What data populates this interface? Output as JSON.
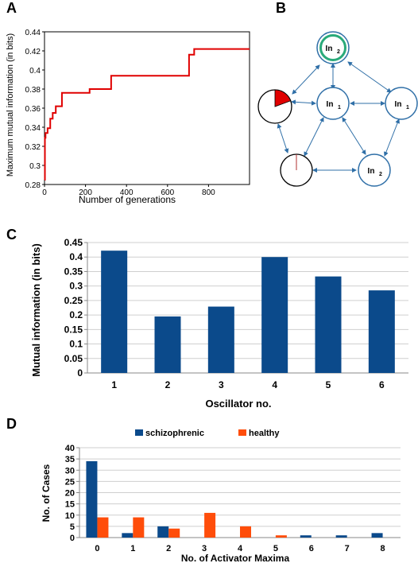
{
  "panels": {
    "a": "A",
    "b": "B",
    "c": "C",
    "d": "D"
  },
  "chart_data": [
    {
      "type": "line",
      "panel": "A",
      "xlabel": "Number of generations",
      "ylabel": "Maximum mutual information (in bits)",
      "xlim": [
        0,
        1000
      ],
      "ylim": [
        0.28,
        0.44
      ],
      "xticks": [
        "0",
        "200",
        "400",
        "600",
        "800"
      ],
      "yticks": [
        "0.28",
        "0.3",
        "0.32",
        "0.34",
        "0.36",
        "0.38",
        "0.4",
        "0.42",
        "0.44"
      ],
      "color": "#e00000",
      "step_x": [
        0,
        2,
        5,
        15,
        28,
        40,
        55,
        85,
        220,
        325,
        705,
        730,
        1000
      ],
      "step_y": [
        0.285,
        0.329,
        0.334,
        0.339,
        0.349,
        0.355,
        0.362,
        0.376,
        0.38,
        0.394,
        0.416,
        0.422,
        0.422
      ]
    },
    {
      "type": "bar",
      "panel": "C",
      "categories": [
        "1",
        "2",
        "3",
        "4",
        "5",
        "6"
      ],
      "values": [
        0.422,
        0.195,
        0.229,
        0.4,
        0.333,
        0.285
      ],
      "xlabel": "Oscillator no.",
      "ylabel": "Mutual information (in bits)",
      "ylim": [
        0,
        0.45
      ],
      "yticks": [
        "0",
        "0.05",
        "0.1",
        "0.15",
        "0.2",
        "0.25",
        "0.3",
        "0.35",
        "0.4",
        "0.45"
      ],
      "color": "#0b4a8b",
      "grid": true
    },
    {
      "type": "bar",
      "panel": "D",
      "categories": [
        "0",
        "1",
        "2",
        "3",
        "4",
        "5",
        "6",
        "7",
        "8"
      ],
      "series": [
        {
          "name": "schizophrenic",
          "values": [
            34,
            2,
            5,
            0,
            0,
            0,
            1,
            1,
            2
          ],
          "color": "#0b4a8b"
        },
        {
          "name": "healthy",
          "values": [
            9,
            9,
            4,
            11,
            5,
            1,
            0,
            0,
            0
          ],
          "color": "#ff4d0a"
        }
      ],
      "xlabel": "No. of Activator Maxima",
      "ylabel": "No. of Cases",
      "ylim": [
        0,
        40
      ],
      "yticks": [
        "0",
        "5",
        "10",
        "15",
        "20",
        "25",
        "30",
        "35",
        "40"
      ],
      "legend": "top",
      "grid": true
    }
  ],
  "diagram": {
    "nodes": {
      "top": {
        "main": "In",
        "sub": "2"
      },
      "mid": {
        "main": "In",
        "sub": "1"
      },
      "right": {
        "main": "In",
        "sub": "1"
      },
      "bottom_right": {
        "main": "In",
        "sub": "2"
      }
    },
    "node_color": "#2f6fa7",
    "accent_ring": "#2aaa7a",
    "activity_color": "#e00000"
  }
}
